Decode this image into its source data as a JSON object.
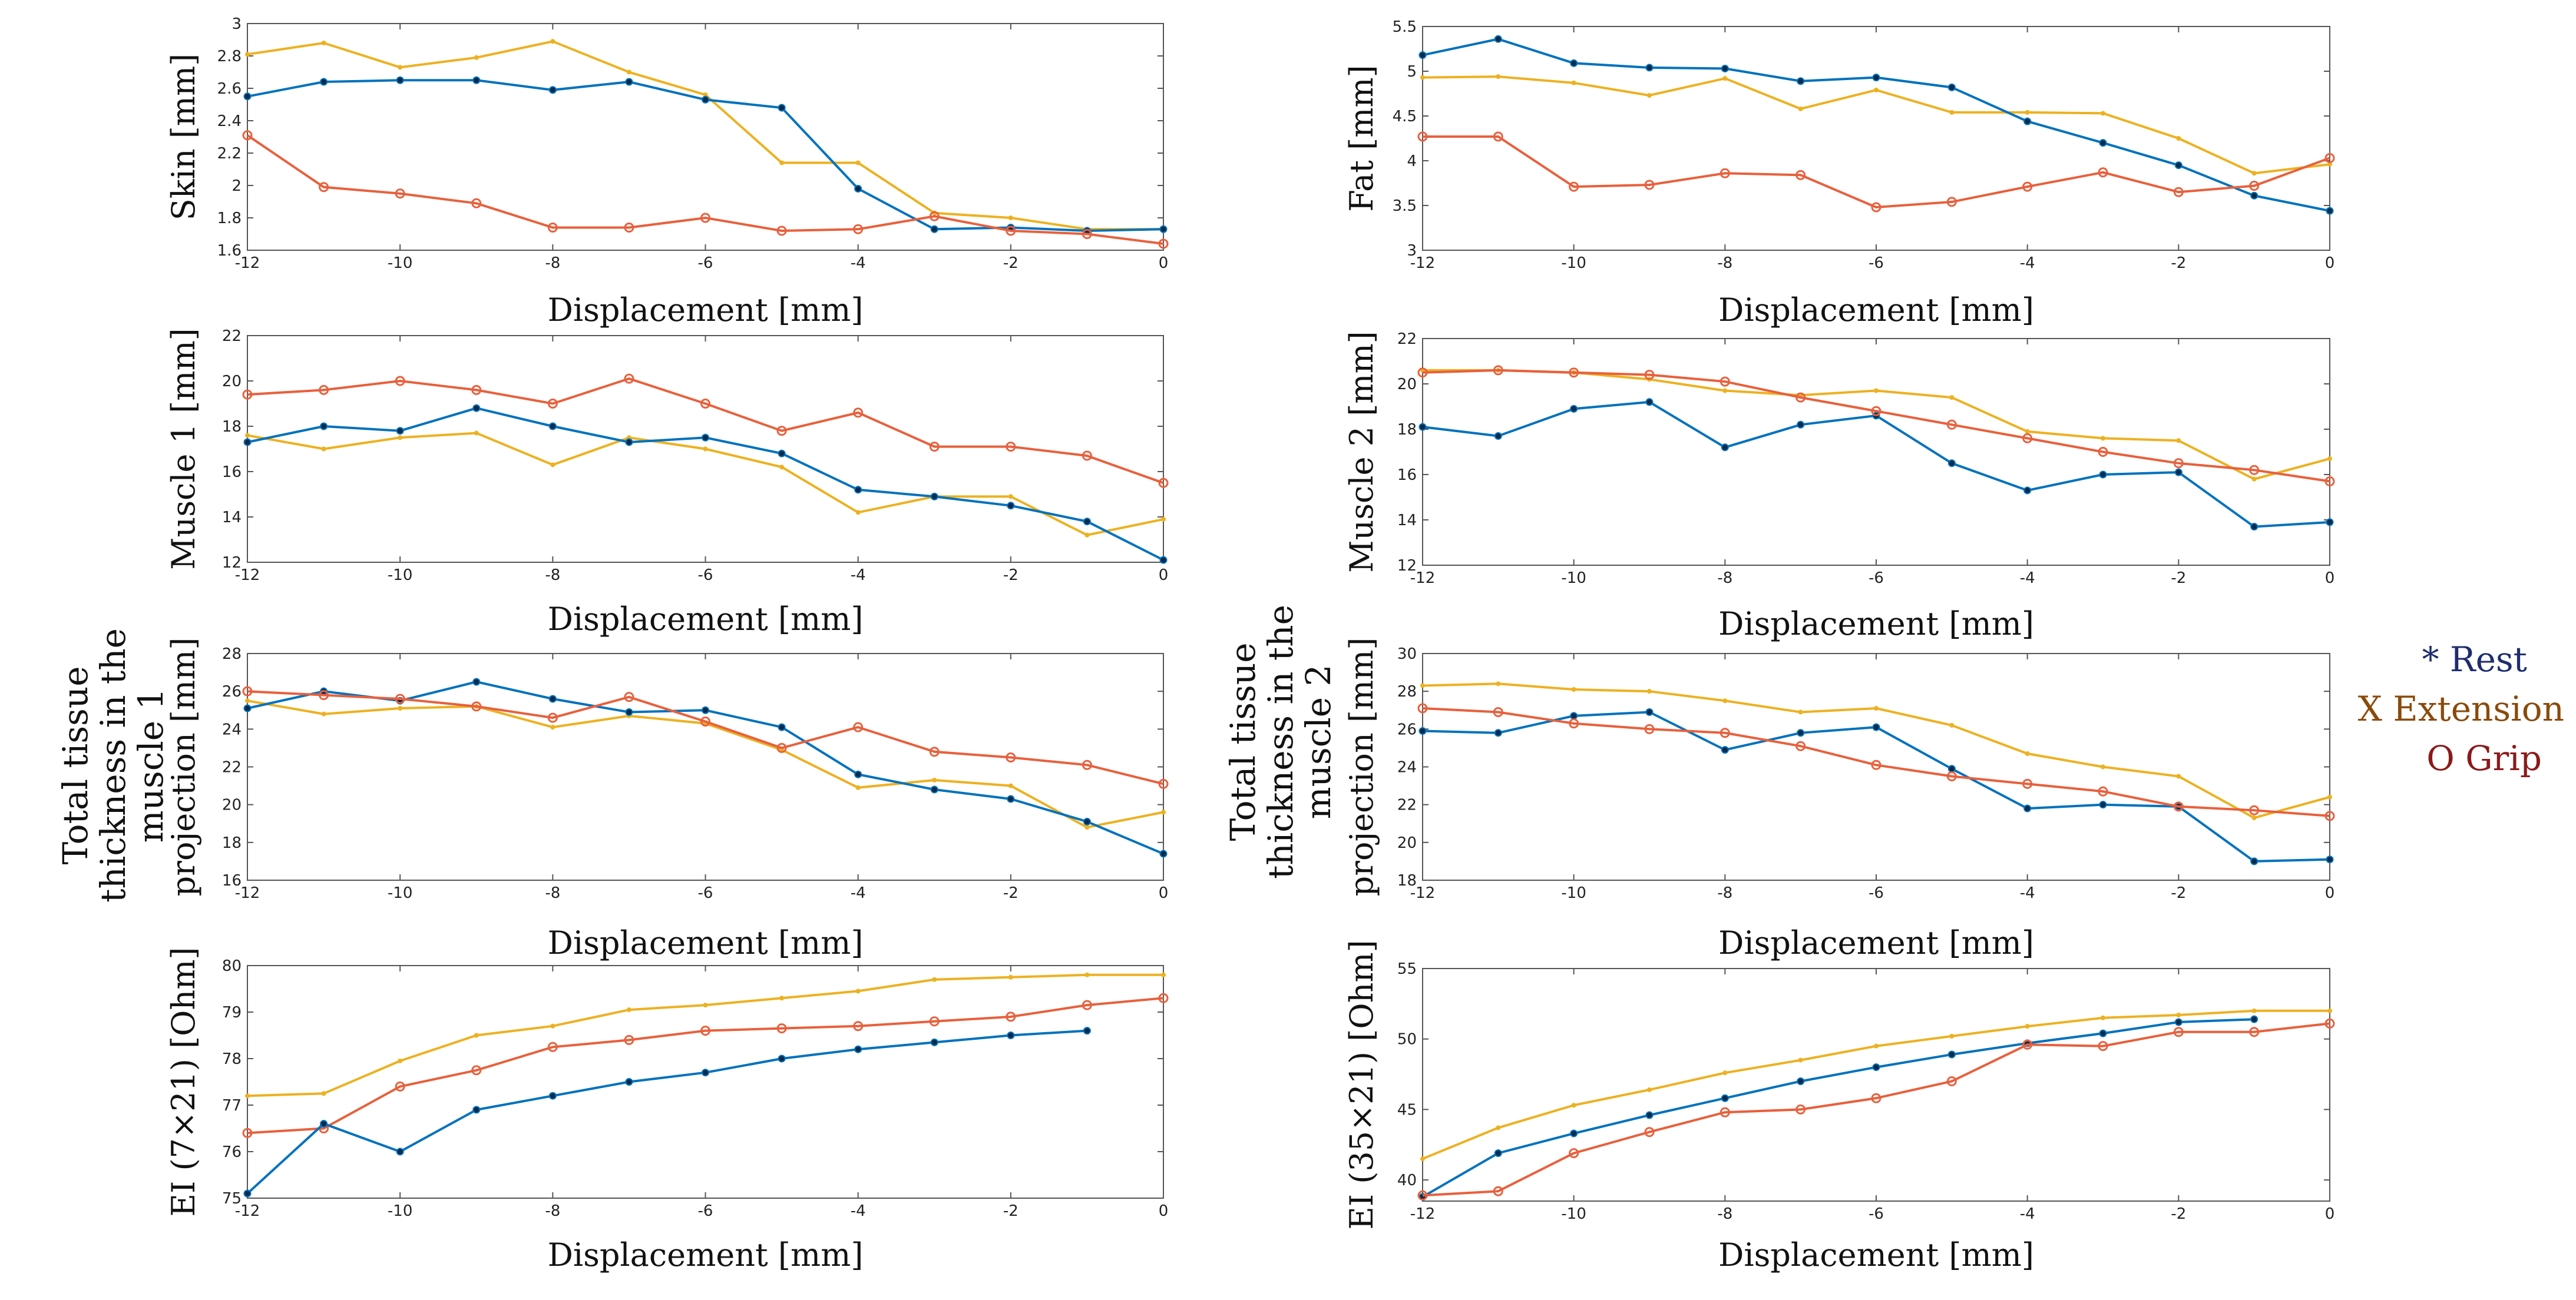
{
  "colors": {
    "rest": "#0072BD",
    "extension": "#EDB120",
    "grip": "#E8603C",
    "legend_rest": "#1F2D6E",
    "legend_extension": "#8B4A0B",
    "legend_grip": "#8B1A1A"
  },
  "legend": [
    {
      "key": "rest",
      "label": "* Rest"
    },
    {
      "key": "extension",
      "label": "X Extension"
    },
    {
      "key": "grip",
      "label": "O Grip"
    }
  ],
  "big_labels": {
    "left": [
      "Total tissue",
      "thickness in the",
      "muscle 1"
    ],
    "right": [
      "Total tissue",
      "thickness in the",
      "muscle 2"
    ]
  },
  "chart_data": [
    {
      "id": "skin",
      "type": "line",
      "ylabel": "Skin [mm]",
      "xlabel": "Displacement [mm]",
      "xlim": [
        -12,
        0
      ],
      "ylim": [
        1.6,
        3
      ],
      "xticks": [
        -12,
        -10,
        -8,
        -6,
        -4,
        -2,
        0
      ],
      "yticks": [
        1.6,
        1.8,
        2,
        2.2,
        2.4,
        2.6,
        2.8,
        3
      ],
      "ytick_labels": [
        "1.6",
        "1.8",
        "2",
        "2.2",
        "2.4",
        "2.6",
        "2.8",
        "3"
      ],
      "x": [
        -12,
        -11,
        -10,
        -9,
        -8,
        -7,
        -6,
        -5,
        -4,
        -3,
        -2,
        -1,
        0
      ],
      "series": [
        {
          "name": "Extension",
          "key": "extension",
          "values": [
            2.81,
            2.88,
            2.73,
            2.79,
            2.89,
            2.7,
            2.56,
            2.14,
            2.14,
            1.83,
            1.8,
            1.73,
            1.73
          ]
        },
        {
          "name": "Rest",
          "key": "rest",
          "values": [
            2.55,
            2.64,
            2.65,
            2.65,
            2.59,
            2.64,
            2.53,
            2.48,
            1.98,
            1.73,
            1.74,
            1.72,
            1.73
          ]
        },
        {
          "name": "Grip",
          "key": "grip",
          "values": [
            2.31,
            1.99,
            1.95,
            1.89,
            1.74,
            1.74,
            1.8,
            1.72,
            1.73,
            1.81,
            1.72,
            1.7,
            1.64
          ]
        }
      ]
    },
    {
      "id": "fat",
      "type": "line",
      "ylabel": "Fat [mm]",
      "xlabel": "Displacement [mm]",
      "xlim": [
        -12,
        0
      ],
      "ylim": [
        3,
        5.5
      ],
      "xticks": [
        -12,
        -10,
        -8,
        -6,
        -4,
        -2,
        0
      ],
      "yticks": [
        3,
        3.5,
        4,
        4.5,
        5,
        5.5
      ],
      "ytick_labels": [
        "3",
        "3.5",
        "4",
        "4.5",
        "5",
        "5.5"
      ],
      "x": [
        -12,
        -11,
        -10,
        -9,
        -8,
        -7,
        -6,
        -5,
        -4,
        -3,
        -2,
        -1,
        0
      ],
      "series": [
        {
          "name": "Extension",
          "key": "extension",
          "values": [
            4.93,
            4.94,
            4.87,
            4.73,
            4.92,
            4.58,
            4.79,
            4.54,
            4.54,
            4.53,
            4.25,
            3.86,
            3.96
          ]
        },
        {
          "name": "Rest",
          "key": "rest",
          "values": [
            5.18,
            5.36,
            5.09,
            5.04,
            5.03,
            4.89,
            4.93,
            4.82,
            4.44,
            4.2,
            3.95,
            3.61,
            3.44
          ]
        },
        {
          "name": "Grip",
          "key": "grip",
          "values": [
            4.27,
            4.27,
            3.71,
            3.73,
            3.86,
            3.84,
            3.48,
            3.54,
            3.71,
            3.87,
            3.65,
            3.72,
            4.03
          ]
        }
      ]
    },
    {
      "id": "muscle1",
      "type": "line",
      "ylabel": "Muscle 1 [mm]",
      "xlabel": "Displacement [mm]",
      "xlim": [
        -12,
        0
      ],
      "ylim": [
        12,
        22
      ],
      "xticks": [
        -12,
        -10,
        -8,
        -6,
        -4,
        -2,
        0
      ],
      "yticks": [
        12,
        14,
        16,
        18,
        20,
        22
      ],
      "ytick_labels": [
        "12",
        "14",
        "16",
        "18",
        "20",
        "22"
      ],
      "x": [
        -12,
        -11,
        -10,
        -9,
        -8,
        -7,
        -6,
        -5,
        -4,
        -3,
        -2,
        -1,
        0
      ],
      "series": [
        {
          "name": "Extension",
          "key": "extension",
          "values": [
            17.6,
            17.0,
            17.5,
            17.7,
            16.3,
            17.5,
            17.0,
            16.2,
            14.2,
            14.9,
            14.9,
            13.2,
            13.9
          ]
        },
        {
          "name": "Rest",
          "key": "rest",
          "values": [
            17.3,
            18.0,
            17.8,
            18.8,
            18.0,
            17.3,
            17.5,
            16.8,
            15.2,
            14.9,
            14.5,
            13.8,
            12.1
          ]
        },
        {
          "name": "Grip",
          "key": "grip",
          "values": [
            19.4,
            19.6,
            20.0,
            19.6,
            19.0,
            20.1,
            19.0,
            17.8,
            18.6,
            17.1,
            17.1,
            16.7,
            15.5
          ]
        }
      ]
    },
    {
      "id": "muscle2",
      "type": "line",
      "ylabel": "Muscle 2 [mm]",
      "xlabel": "Displacement [mm]",
      "xlim": [
        -12,
        0
      ],
      "ylim": [
        12,
        22
      ],
      "xticks": [
        -12,
        -10,
        -8,
        -6,
        -4,
        -2,
        0
      ],
      "yticks": [
        12,
        14,
        16,
        18,
        20,
        22
      ],
      "ytick_labels": [
        "12",
        "14",
        "16",
        "18",
        "20",
        "22"
      ],
      "x": [
        -12,
        -11,
        -10,
        -9,
        -8,
        -7,
        -6,
        -5,
        -4,
        -3,
        -2,
        -1,
        0
      ],
      "series": [
        {
          "name": "Extension",
          "key": "extension",
          "values": [
            20.6,
            20.6,
            20.5,
            20.2,
            19.7,
            19.5,
            19.7,
            19.4,
            17.9,
            17.6,
            17.5,
            15.8,
            16.7
          ]
        },
        {
          "name": "Rest",
          "key": "rest",
          "values": [
            18.1,
            17.7,
            18.9,
            19.2,
            17.2,
            18.2,
            18.6,
            16.5,
            15.3,
            16.0,
            16.1,
            13.7,
            13.9
          ]
        },
        {
          "name": "Grip",
          "key": "grip",
          "values": [
            20.5,
            20.6,
            20.5,
            20.4,
            20.1,
            19.4,
            18.8,
            18.2,
            17.6,
            17.0,
            16.5,
            16.2,
            15.7
          ]
        }
      ]
    },
    {
      "id": "total1",
      "type": "line",
      "ylabel": "projection [mm]",
      "xlabel": "Displacement [mm]",
      "xlim": [
        -12,
        0
      ],
      "ylim": [
        16,
        28
      ],
      "xticks": [
        -12,
        -10,
        -8,
        -6,
        -4,
        -2,
        0
      ],
      "yticks": [
        16,
        18,
        20,
        22,
        24,
        26,
        28
      ],
      "ytick_labels": [
        "16",
        "18",
        "20",
        "22",
        "24",
        "26",
        "28"
      ],
      "x": [
        -12,
        -11,
        -10,
        -9,
        -8,
        -7,
        -6,
        -5,
        -4,
        -3,
        -2,
        -1,
        0
      ],
      "series": [
        {
          "name": "Extension",
          "key": "extension",
          "values": [
            25.5,
            24.8,
            25.1,
            25.2,
            24.1,
            24.7,
            24.3,
            22.9,
            20.9,
            21.3,
            21.0,
            18.8,
            19.6
          ]
        },
        {
          "name": "Rest",
          "key": "rest",
          "values": [
            25.1,
            26.0,
            25.5,
            26.5,
            25.6,
            24.9,
            25.0,
            24.1,
            21.6,
            20.8,
            20.3,
            19.1,
            17.4
          ]
        },
        {
          "name": "Grip",
          "key": "grip",
          "values": [
            26.0,
            25.8,
            25.6,
            25.2,
            24.6,
            25.7,
            24.4,
            23.0,
            24.1,
            22.8,
            22.5,
            22.1,
            21.1
          ]
        }
      ]
    },
    {
      "id": "total2",
      "type": "line",
      "ylabel": "projection [mm]",
      "xlabel": "Displacement [mm]",
      "xlim": [
        -12,
        0
      ],
      "ylim": [
        18,
        30
      ],
      "xticks": [
        -12,
        -10,
        -8,
        -6,
        -4,
        -2,
        0
      ],
      "yticks": [
        18,
        20,
        22,
        24,
        26,
        28,
        30
      ],
      "ytick_labels": [
        "18",
        "20",
        "22",
        "24",
        "26",
        "28",
        "30"
      ],
      "x": [
        -12,
        -11,
        -10,
        -9,
        -8,
        -7,
        -6,
        -5,
        -4,
        -3,
        -2,
        -1,
        0
      ],
      "series": [
        {
          "name": "Extension",
          "key": "extension",
          "values": [
            28.3,
            28.4,
            28.1,
            28.0,
            27.5,
            26.9,
            27.1,
            26.2,
            24.7,
            24.0,
            23.5,
            21.3,
            22.4
          ]
        },
        {
          "name": "Rest",
          "key": "rest",
          "values": [
            25.9,
            25.8,
            26.7,
            26.9,
            24.9,
            25.8,
            26.1,
            23.9,
            21.8,
            22.0,
            21.9,
            19.0,
            19.1
          ]
        },
        {
          "name": "Grip",
          "key": "grip",
          "values": [
            27.1,
            26.9,
            26.3,
            26.0,
            25.8,
            25.1,
            24.1,
            23.5,
            23.1,
            22.7,
            21.9,
            21.7,
            21.4
          ]
        }
      ]
    },
    {
      "id": "ei7",
      "type": "line",
      "ylabel": "EI (7×21) [Ohm]",
      "xlabel": "Displacement [mm]",
      "xlim": [
        -12,
        0
      ],
      "ylim": [
        75,
        80
      ],
      "xticks": [
        -12,
        -10,
        -8,
        -6,
        -4,
        -2,
        0
      ],
      "yticks": [
        75,
        76,
        77,
        78,
        79,
        80
      ],
      "ytick_labels": [
        "75",
        "76",
        "77",
        "78",
        "79",
        "80"
      ],
      "x": [
        -12,
        -11,
        -10,
        -9,
        -8,
        -7,
        -6,
        -5,
        -4,
        -3,
        -2,
        -1,
        0
      ],
      "series": [
        {
          "name": "Extension",
          "key": "extension",
          "values": [
            77.2,
            77.25,
            77.95,
            78.5,
            78.7,
            79.05,
            79.15,
            79.3,
            79.45,
            79.7,
            79.75,
            79.8,
            79.8
          ]
        },
        {
          "name": "Grip",
          "key": "grip",
          "values": [
            76.4,
            76.5,
            77.4,
            77.75,
            78.25,
            78.4,
            78.6,
            78.65,
            78.7,
            78.8,
            78.9,
            79.15,
            79.3
          ]
        },
        {
          "name": "Rest",
          "key": "rest",
          "values": [
            75.1,
            76.6,
            76.0,
            76.9,
            77.2,
            77.5,
            77.7,
            78.0,
            78.2,
            78.35,
            78.5,
            78.6,
            null
          ]
        }
      ]
    },
    {
      "id": "ei35",
      "type": "line",
      "ylabel": "EI (35×21) [Ohm]",
      "xlabel": "Displacement [mm]",
      "xlim": [
        -12,
        0
      ],
      "ylim": [
        38.5,
        55
      ],
      "xticks": [
        -12,
        -10,
        -8,
        -6,
        -4,
        -2,
        0
      ],
      "yticks": [
        40,
        45,
        50,
        55
      ],
      "ytick_labels": [
        "40",
        "45",
        "50",
        "55"
      ],
      "x": [
        -12,
        -11,
        -10,
        -9,
        -8,
        -7,
        -6,
        -5,
        -4,
        -3,
        -2,
        -1,
        0
      ],
      "series": [
        {
          "name": "Extension",
          "key": "extension",
          "values": [
            41.5,
            43.7,
            45.3,
            46.4,
            47.6,
            48.5,
            49.5,
            50.2,
            50.9,
            51.5,
            51.7,
            52.0,
            52.0
          ]
        },
        {
          "name": "Rest",
          "key": "rest",
          "values": [
            38.8,
            41.9,
            43.3,
            44.6,
            45.8,
            47.0,
            48.0,
            48.9,
            49.7,
            50.4,
            51.2,
            51.4,
            null
          ]
        },
        {
          "name": "Grip",
          "key": "grip",
          "values": [
            38.9,
            39.2,
            41.9,
            43.4,
            44.8,
            45.0,
            45.8,
            47.0,
            49.6,
            49.5,
            50.5,
            50.5,
            51.1
          ]
        }
      ]
    }
  ]
}
